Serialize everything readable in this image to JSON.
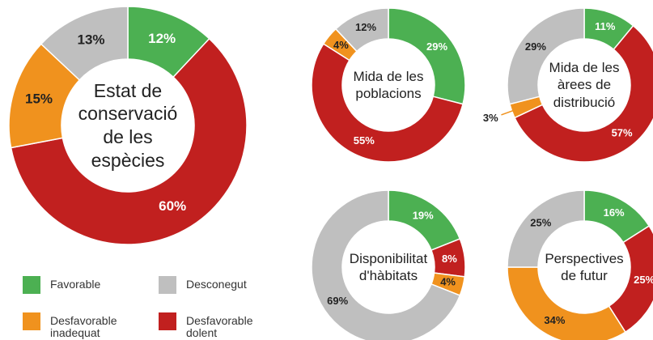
{
  "chart_data": [
    {
      "type": "donut",
      "title": "Estat de conservació de les espècies",
      "categories": [
        "Favorable",
        "Desfavorable dolent",
        "Desfavorable inadequat",
        "Desconegut"
      ],
      "values": [
        12,
        60,
        15,
        13
      ],
      "value_labels": [
        "12%",
        "60%",
        "15%",
        "13%"
      ],
      "colors": [
        "#4cb052",
        "#c1201f",
        "#f0921e",
        "#bfbfbf"
      ]
    },
    {
      "type": "donut",
      "title": "Mida de les poblacions",
      "values": [
        29,
        55,
        4,
        12
      ],
      "value_labels": [
        "29%",
        "55%",
        "4%",
        "12%"
      ],
      "colors": [
        "#4cb052",
        "#c1201f",
        "#f0921e",
        "#bfbfbf"
      ]
    },
    {
      "type": "donut",
      "title": "Mida de les àrees de distribució",
      "values": [
        11,
        57,
        3,
        29
      ],
      "value_labels": [
        "11%",
        "57%",
        "3%",
        "29%"
      ],
      "colors": [
        "#4cb052",
        "#c1201f",
        "#f0921e",
        "#bfbfbf"
      ]
    },
    {
      "type": "donut",
      "title": "Disponibilitat d'hàbitats",
      "values": [
        19,
        8,
        4,
        69
      ],
      "value_labels": [
        "19%",
        "8%",
        "4%",
        "69%"
      ],
      "colors": [
        "#4cb052",
        "#c1201f",
        "#f0921e",
        "#bfbfbf"
      ]
    },
    {
      "type": "donut",
      "title": "Perspectives de futur",
      "values": [
        16,
        25,
        34,
        25
      ],
      "value_labels": [
        "16%",
        "25%",
        "34%",
        "25%"
      ],
      "colors": [
        "#4cb052",
        "#c1201f",
        "#f0921e",
        "#bfbfbf"
      ]
    }
  ]
}
